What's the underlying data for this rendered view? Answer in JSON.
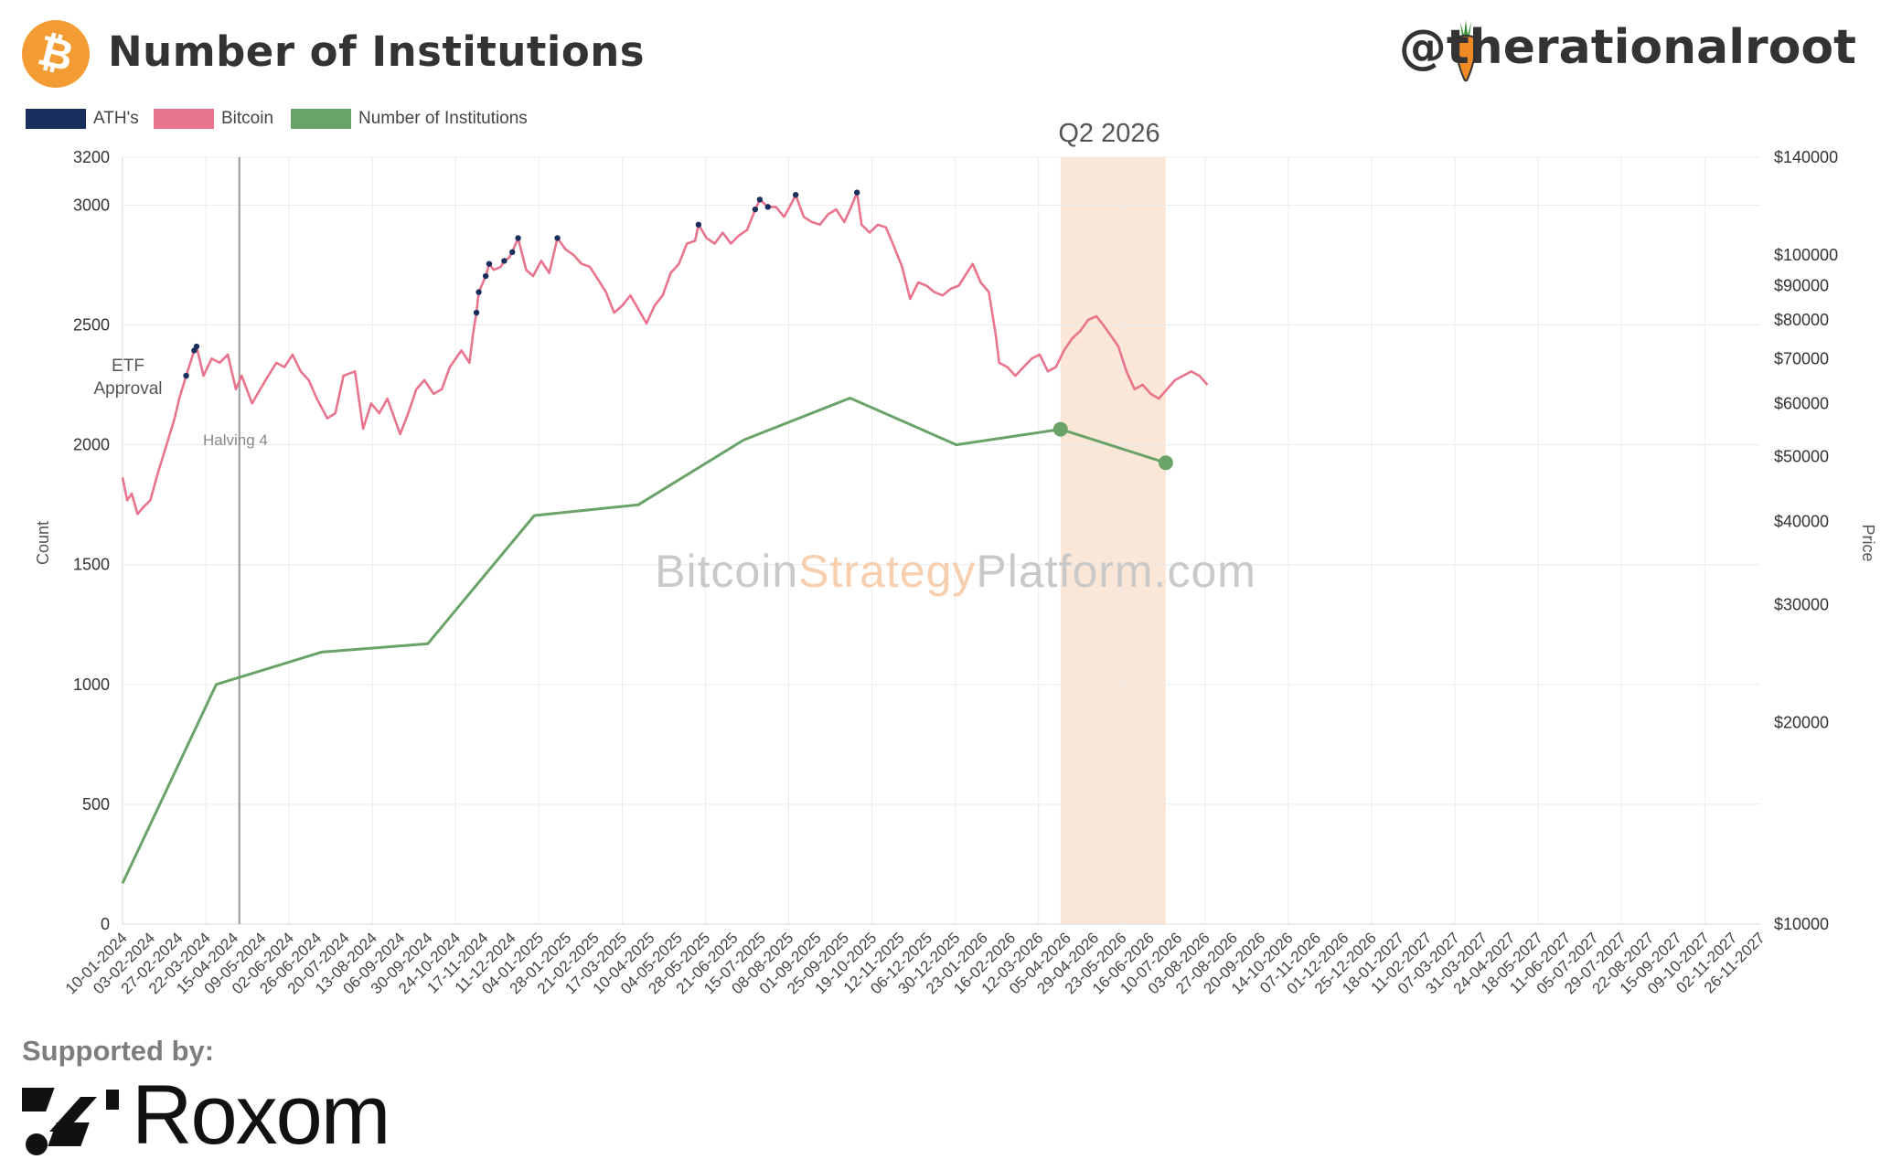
{
  "header": {
    "title": "Number of Institutions",
    "handle": "@therationalroot"
  },
  "footer": {
    "supported_label": "Supported by:",
    "sponsor": "Roxom"
  },
  "colors": {
    "ath": "#1b2f5f",
    "bitcoin": "#e8748d",
    "institutions": "#6aa368",
    "highlight": "#fbe7d8",
    "brand_orange": "#f39c34"
  },
  "chart_data": {
    "type": "line",
    "legend": [
      {
        "label": "ATH's",
        "color": "#1b2f5f"
      },
      {
        "label": "Bitcoin",
        "color": "#e8748d"
      },
      {
        "label": "Number of Institutions",
        "color": "#6aa368"
      }
    ],
    "y_left": {
      "label": "Count",
      "ticks": [
        0,
        500,
        1000,
        1500,
        2000,
        2500,
        3000,
        3200
      ],
      "range": [
        0,
        3200
      ]
    },
    "y_right": {
      "label": "Price",
      "scale": "log",
      "ticks": [
        10000,
        20000,
        30000,
        40000,
        50000,
        60000,
        70000,
        80000,
        90000,
        100000,
        140000
      ],
      "tick_labels": [
        "$10000",
        "$20000",
        "$30000",
        "$40000",
        "$50000",
        "$60000",
        "$70000",
        "$80000",
        "$90000",
        "$100000",
        "$140000"
      ],
      "range": [
        10000,
        140000
      ]
    },
    "x_labels": [
      "10-01-2024",
      "03-02-2024",
      "27-02-2024",
      "22-03-2024",
      "15-04-2024",
      "09-05-2024",
      "02-06-2024",
      "26-06-2024",
      "20-07-2024",
      "13-08-2024",
      "06-09-2024",
      "30-09-2024",
      "24-10-2024",
      "17-11-2024",
      "11-12-2024",
      "04-01-2025",
      "28-01-2025",
      "21-02-2025",
      "17-03-2025",
      "10-04-2025",
      "04-05-2025",
      "28-05-2025",
      "21-06-2025",
      "15-07-2025",
      "08-08-2025",
      "01-09-2025",
      "25-09-2025",
      "19-10-2025",
      "12-11-2025",
      "06-12-2025",
      "30-12-2025",
      "23-01-2026",
      "16-02-2026",
      "12-03-2026",
      "05-04-2026",
      "29-04-2026",
      "23-05-2026",
      "16-06-2026",
      "10-07-2026",
      "03-08-2026",
      "27-08-2026",
      "20-09-2026",
      "14-10-2026",
      "07-11-2026",
      "01-12-2026",
      "25-12-2026",
      "18-01-2027",
      "11-02-2027",
      "07-03-2027",
      "31-03-2027",
      "24-04-2027",
      "18-05-2027",
      "11-06-2027",
      "05-07-2027",
      "29-07-2027",
      "22-08-2027",
      "15-09-2027",
      "09-10-2027",
      "02-11-2027",
      "26-11-2027"
    ],
    "institutions_series": {
      "name": "Number of Institutions",
      "x": [
        "2024-01-10",
        "2024-03-31",
        "2024-06-30",
        "2024-09-30",
        "2024-12-31",
        "2025-03-31",
        "2025-06-30",
        "2025-09-30",
        "2025-12-31",
        "2026-03-31",
        "2026-06-30"
      ],
      "values": [
        170,
        1000,
        1135,
        1170,
        1705,
        1750,
        2020,
        2195,
        2000,
        2065,
        1925
      ],
      "markers": [
        "2026-03-31",
        "2026-06-30"
      ]
    },
    "bitcoin_series": {
      "name": "Bitcoin",
      "x": [
        "2024-01-10",
        "2024-01-14",
        "2024-01-18",
        "2024-01-23",
        "2024-01-28",
        "2024-02-03",
        "2024-02-10",
        "2024-02-17",
        "2024-02-24",
        "2024-02-28",
        "2024-03-05",
        "2024-03-12",
        "2024-03-14",
        "2024-03-20",
        "2024-03-27",
        "2024-04-03",
        "2024-04-10",
        "2024-04-17",
        "2024-04-22",
        "2024-05-01",
        "2024-05-08",
        "2024-05-15",
        "2024-05-22",
        "2024-05-29",
        "2024-06-05",
        "2024-06-12",
        "2024-06-19",
        "2024-06-26",
        "2024-07-05",
        "2024-07-12",
        "2024-07-19",
        "2024-07-29",
        "2024-08-05",
        "2024-08-12",
        "2024-08-19",
        "2024-08-26",
        "2024-09-06",
        "2024-09-13",
        "2024-09-20",
        "2024-09-27",
        "2024-10-05",
        "2024-10-12",
        "2024-10-19",
        "2024-10-29",
        "2024-11-05",
        "2024-11-08",
        "2024-11-11",
        "2024-11-13",
        "2024-11-19",
        "2024-11-22",
        "2024-11-26",
        "2024-12-02",
        "2024-12-05",
        "2024-12-09",
        "2024-12-12",
        "2024-12-17",
        "2024-12-24",
        "2024-12-30",
        "2025-01-06",
        "2025-01-13",
        "2025-01-20",
        "2025-01-27",
        "2025-02-03",
        "2025-02-10",
        "2025-02-17",
        "2025-02-24",
        "2025-03-03",
        "2025-03-10",
        "2025-03-17",
        "2025-03-24",
        "2025-03-31",
        "2025-04-07",
        "2025-04-14",
        "2025-04-21",
        "2025-04-28",
        "2025-05-05",
        "2025-05-12",
        "2025-05-19",
        "2025-05-22",
        "2025-05-29",
        "2025-06-05",
        "2025-06-12",
        "2025-06-19",
        "2025-06-26",
        "2025-07-03",
        "2025-07-10",
        "2025-07-14",
        "2025-07-21",
        "2025-07-28",
        "2025-08-04",
        "2025-08-11",
        "2025-08-14",
        "2025-08-21",
        "2025-08-28",
        "2025-09-04",
        "2025-09-11",
        "2025-09-18",
        "2025-09-25",
        "2025-10-01",
        "2025-10-06",
        "2025-10-10",
        "2025-10-17",
        "2025-10-24",
        "2025-10-31",
        "2025-11-07",
        "2025-11-14",
        "2025-11-21",
        "2025-11-28",
        "2025-12-05",
        "2025-12-12",
        "2025-12-19",
        "2025-12-26",
        "2026-01-02",
        "2026-01-09",
        "2026-01-14",
        "2026-01-21",
        "2026-01-28",
        "2026-02-03",
        "2026-02-06",
        "2026-02-13",
        "2026-02-20",
        "2026-02-27",
        "2026-03-06",
        "2026-03-13",
        "2026-03-20",
        "2026-03-27",
        "2026-04-03",
        "2026-04-10",
        "2026-04-17",
        "2026-04-24",
        "2026-05-01",
        "2026-05-06",
        "2026-05-13",
        "2026-05-20",
        "2026-05-27",
        "2026-06-03",
        "2026-06-10",
        "2026-06-17",
        "2026-06-24",
        "2026-07-01",
        "2026-07-08",
        "2026-07-15",
        "2026-07-22",
        "2026-07-29",
        "2026-08-05"
      ],
      "values": [
        46500,
        43000,
        44000,
        41000,
        42000,
        43000,
        47500,
        52000,
        57000,
        61000,
        66000,
        72000,
        73000,
        66000,
        70000,
        69000,
        71000,
        63000,
        66000,
        60000,
        63000,
        66000,
        69000,
        68000,
        71000,
        67000,
        65000,
        61000,
        57000,
        58000,
        66000,
        67000,
        55000,
        60000,
        58000,
        61000,
        54000,
        58000,
        63000,
        65000,
        62000,
        63000,
        68000,
        72000,
        69000,
        76000,
        82000,
        88000,
        93000,
        97000,
        95000,
        96000,
        98000,
        99000,
        101000,
        106000,
        95000,
        93000,
        98000,
        94000,
        106000,
        102000,
        100000,
        97000,
        96000,
        92000,
        88000,
        82000,
        84000,
        87000,
        83000,
        79000,
        84000,
        87000,
        94000,
        97000,
        104000,
        105000,
        111000,
        106000,
        104000,
        108000,
        104000,
        107000,
        109000,
        117000,
        121000,
        118000,
        118000,
        114000,
        120000,
        123000,
        114000,
        112000,
        111000,
        115000,
        117000,
        112000,
        118000,
        124000,
        111000,
        108000,
        111000,
        110000,
        103000,
        96000,
        86000,
        91000,
        90000,
        88000,
        87000,
        89000,
        90000,
        94000,
        97000,
        91000,
        88000,
        76000,
        69000,
        68000,
        66000,
        68000,
        70000,
        71000,
        67000,
        68000,
        72000,
        75000,
        77000,
        80000,
        81000,
        79000,
        76000,
        73000,
        67000,
        63000,
        64000,
        62000,
        61000,
        63000,
        65000,
        66000,
        67000,
        66000,
        64000
      ],
      "ath_dates": [
        "2024-03-05",
        "2024-03-12",
        "2024-03-14",
        "2024-11-11",
        "2024-11-13",
        "2024-11-19",
        "2024-11-22",
        "2024-12-05",
        "2024-12-12",
        "2024-12-17",
        "2025-01-20",
        "2025-05-22",
        "2025-07-10",
        "2025-07-14",
        "2025-07-21",
        "2025-08-14",
        "2025-10-06"
      ]
    },
    "highlight_band": {
      "label": "Q2 2026",
      "from": "2026-03-31",
      "to": "2026-06-30"
    },
    "annotations": [
      {
        "label": "ETF",
        "line2": "Approval"
      },
      {
        "label": "Halving 4",
        "date": "2024-04-20"
      }
    ],
    "watermark": {
      "part1": "Bitcoin",
      "part2": "Strategy",
      "part3": "Platform.com"
    }
  }
}
